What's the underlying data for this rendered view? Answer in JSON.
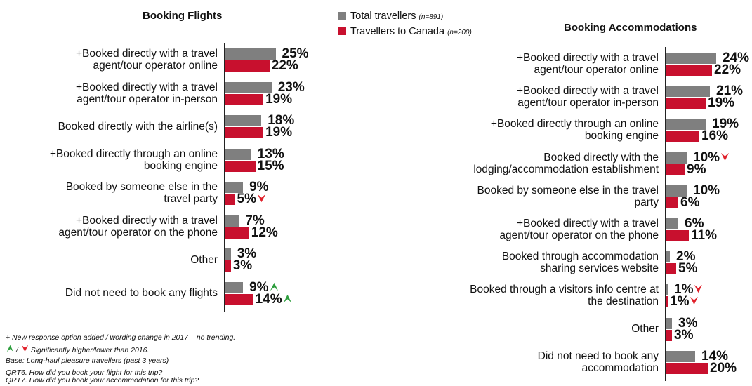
{
  "legend": {
    "total": {
      "label": "Total travellers",
      "n": "(n=891)",
      "color": "#7f7f7f"
    },
    "canada": {
      "label": "Travellers to Canada",
      "n": "(n=200)",
      "color": "#c8102e"
    }
  },
  "chart_data": [
    {
      "type": "bar",
      "orientation": "horizontal",
      "title": "Booking Flights",
      "series": [
        {
          "name": "Total travellers",
          "color": "#7f7f7f"
        },
        {
          "name": "Travellers to Canada",
          "color": "#c8102e"
        }
      ],
      "categories": [
        {
          "lines": [
            "+Booked directly with a travel",
            "agent/tour operator online"
          ],
          "total": 25,
          "canada": 22,
          "total_label": "25%",
          "canada_label": "22%"
        },
        {
          "lines": [
            "+Booked directly with a travel",
            "agent/tour operator in-person"
          ],
          "total": 23,
          "canada": 19,
          "total_label": "23%",
          "canada_label": "19%"
        },
        {
          "lines": [
            "Booked directly with the airline(s)"
          ],
          "total": 18,
          "canada": 19,
          "total_label": "18%",
          "canada_label": "19%"
        },
        {
          "lines": [
            "+Booked directly through an online",
            "booking engine"
          ],
          "total": 13,
          "canada": 15,
          "total_label": "13%",
          "canada_label": "15%"
        },
        {
          "lines": [
            "Booked by someone else in the",
            "travel party"
          ],
          "total": 9,
          "canada": 5,
          "total_label": "9%",
          "canada_label": "5%",
          "canada_sig": "lower"
        },
        {
          "lines": [
            "+Booked directly with a travel",
            "agent/tour operator on the phone"
          ],
          "total": 7,
          "canada": 12,
          "total_label": "7%",
          "canada_label": "12%"
        },
        {
          "lines": [
            "Other"
          ],
          "total": 3,
          "canada": 3,
          "total_label": "3%",
          "canada_label": "3%"
        },
        {
          "lines": [
            "Did not need to book any flights"
          ],
          "total": 9,
          "canada": 14,
          "total_label": "9%",
          "canada_label": "14%",
          "total_sig": "higher",
          "canada_sig": "higher"
        }
      ]
    },
    {
      "type": "bar",
      "orientation": "horizontal",
      "title": "Booking Accommodations",
      "series": [
        {
          "name": "Total travellers",
          "color": "#7f7f7f"
        },
        {
          "name": "Travellers to Canada",
          "color": "#c8102e"
        }
      ],
      "categories": [
        {
          "lines": [
            "+Booked directly with a travel",
            "agent/tour operator online"
          ],
          "total": 24,
          "canada": 22,
          "total_label": "24%",
          "canada_label": "22%"
        },
        {
          "lines": [
            "+Booked directly with a travel",
            "agent/tour operator in-person"
          ],
          "total": 21,
          "canada": 19,
          "total_label": "21%",
          "canada_label": "19%"
        },
        {
          "lines": [
            "+Booked directly through an online",
            "booking engine"
          ],
          "total": 19,
          "canada": 16,
          "total_label": "19%",
          "canada_label": "16%"
        },
        {
          "lines": [
            "Booked directly with the",
            "lodging/accommodation establishment"
          ],
          "total": 10,
          "canada": 9,
          "total_label": "10%",
          "canada_label": "9%",
          "total_sig": "lower"
        },
        {
          "lines": [
            "Booked by someone else in the travel",
            "party"
          ],
          "total": 10,
          "canada": 6,
          "total_label": "10%",
          "canada_label": "6%"
        },
        {
          "lines": [
            "+Booked directly with a travel",
            "agent/tour operator on the phone"
          ],
          "total": 6,
          "canada": 11,
          "total_label": "6%",
          "canada_label": "11%"
        },
        {
          "lines": [
            "Booked through accommodation",
            "sharing services website"
          ],
          "total": 2,
          "canada": 5,
          "total_label": "2%",
          "canada_label": "5%"
        },
        {
          "lines": [
            "Booked through a visitors info centre at",
            "the destination"
          ],
          "total": 1,
          "canada": 1,
          "total_label": "1%",
          "canada_label": "1%",
          "total_sig": "lower",
          "canada_sig": "lower"
        },
        {
          "lines": [
            "Other"
          ],
          "total": 3,
          "canada": 3,
          "total_label": "3%",
          "canada_label": "3%"
        },
        {
          "lines": [
            "Did not need to book any",
            "accommodation"
          ],
          "total": 14,
          "canada": 20,
          "total_label": "14%",
          "canada_label": "20%"
        }
      ]
    }
  ],
  "footnotes": {
    "new_option": "+ New response option added / wording change in 2017 – no trending.",
    "sig_slash": "/",
    "sig_text": "Significantly higher/lower than 2016.",
    "base": "Base: Long-haul pleasure travellers (past 3 years)",
    "q6": "QRT6. How did you book your flight for this trip?",
    "q7": "QRT7. How did you book your accommodation for this trip?"
  }
}
